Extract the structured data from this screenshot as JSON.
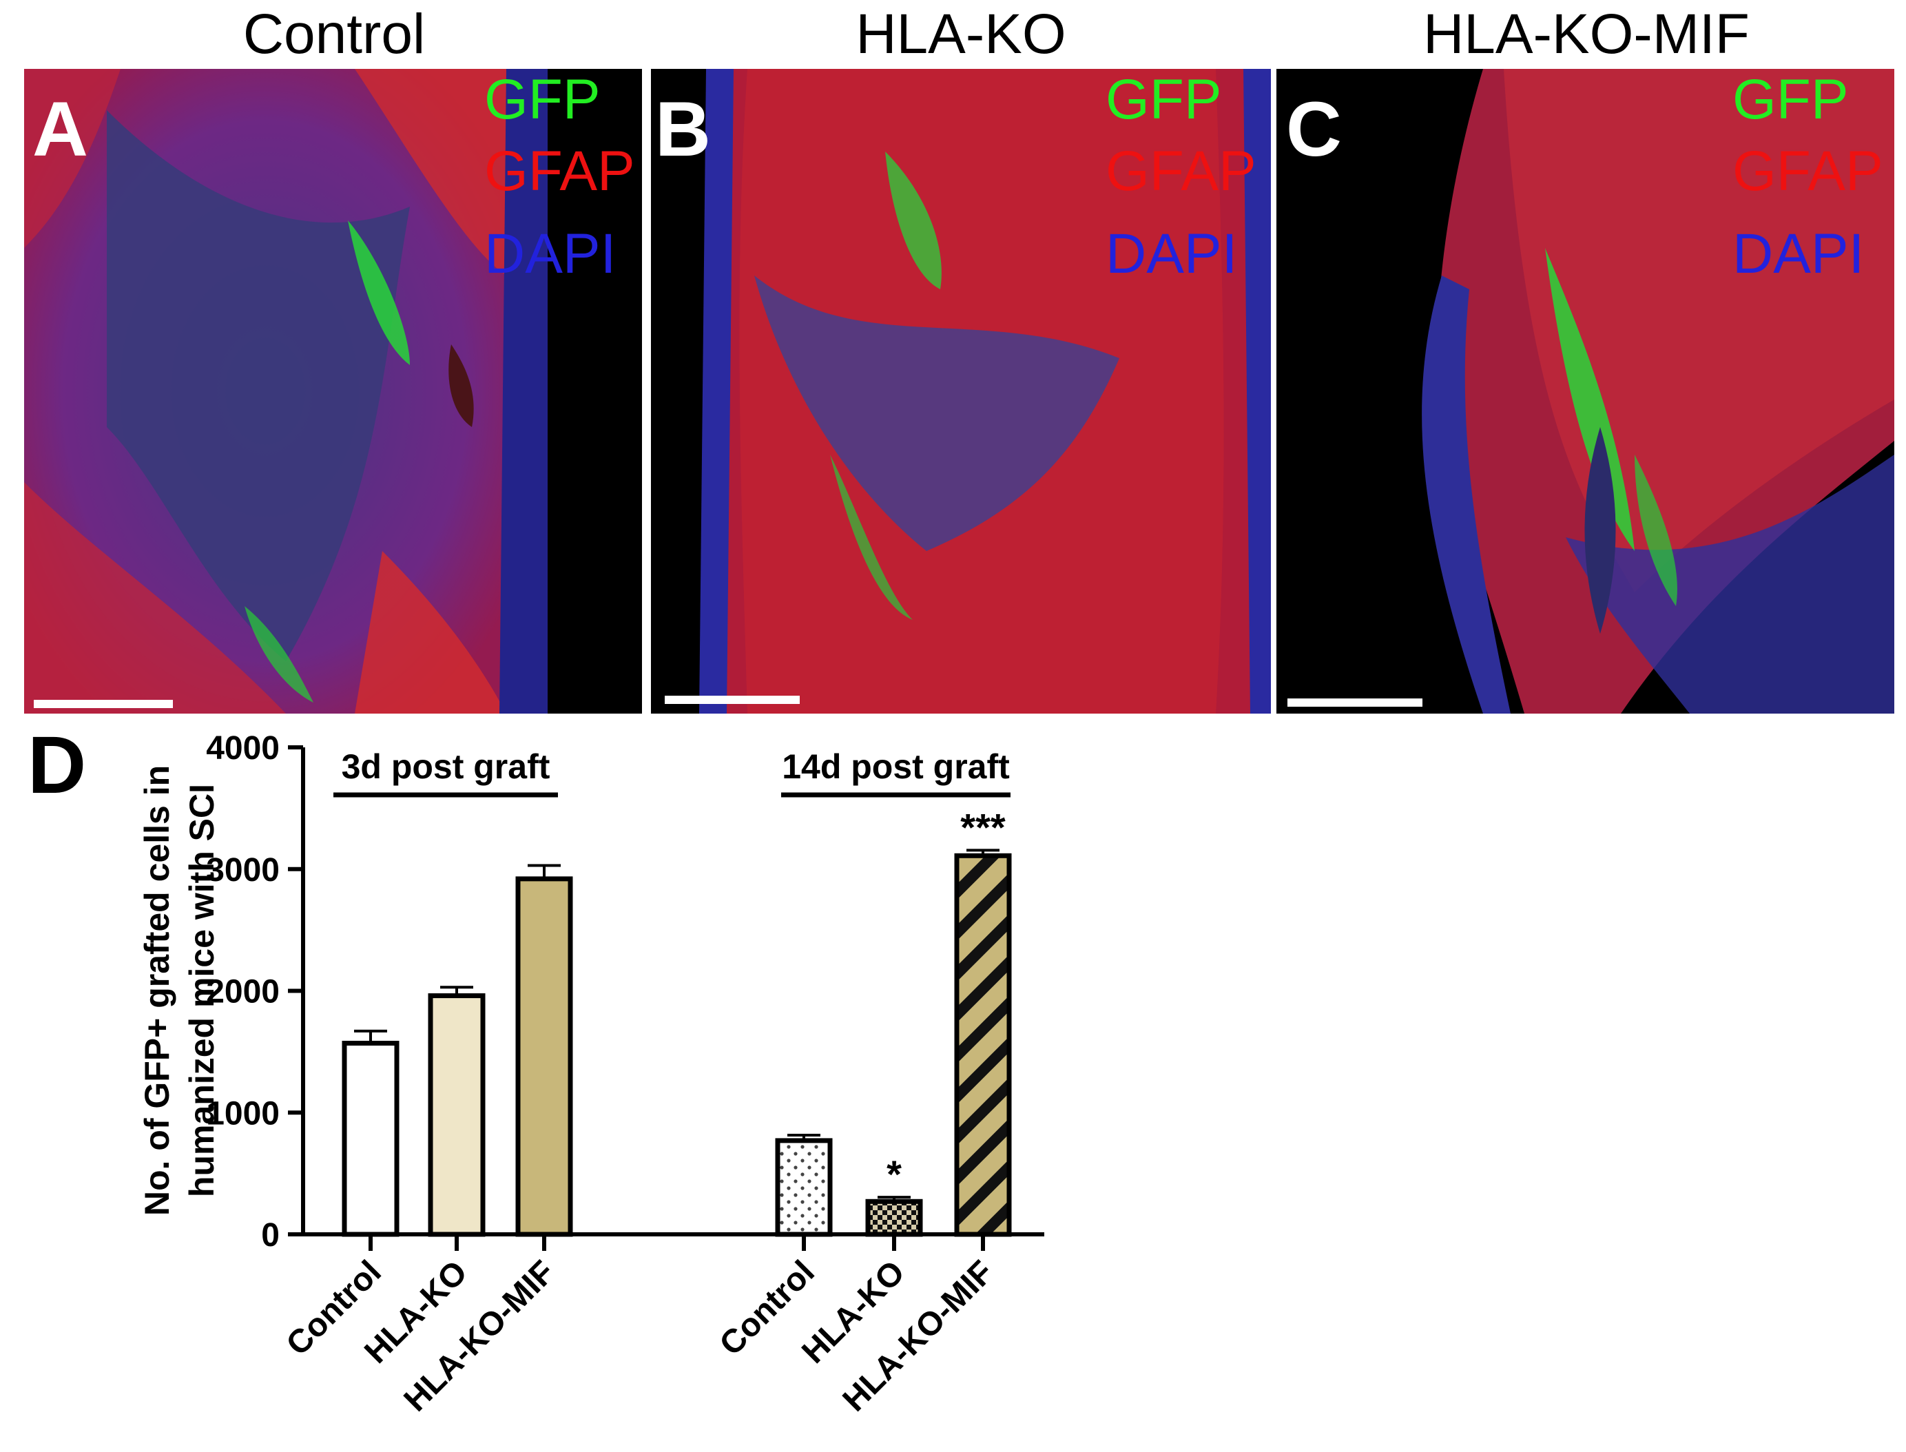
{
  "panels": [
    {
      "letter": "A",
      "title": "Control"
    },
    {
      "letter": "B",
      "title": "HLA-KO"
    },
    {
      "letter": "C",
      "title": "HLA-KO-MIF"
    }
  ],
  "stains": [
    {
      "label": "GFP",
      "color": "#22ee22"
    },
    {
      "label": "GFAP",
      "color": "#ee1111"
    },
    {
      "label": "DAPI",
      "color": "#2222dd"
    }
  ],
  "chart_letter": "D",
  "chart_data": {
    "type": "bar",
    "ylabel_lines": [
      "No. of GFP+ grafted cells in",
      "humanized mice with SCI"
    ],
    "ylim": [
      0,
      4000
    ],
    "yticks": [
      0,
      1000,
      2000,
      3000,
      4000
    ],
    "groups": [
      {
        "label": "3d post graft",
        "bars": [
          {
            "category": "Control",
            "value": 1570,
            "error": 100,
            "fill": "#ffffff",
            "pattern": "none",
            "sig": ""
          },
          {
            "category": "HLA-KO",
            "value": 1960,
            "error": 70,
            "fill": "#efe6c8",
            "pattern": "none",
            "sig": ""
          },
          {
            "category": "HLA-KO-MIF",
            "value": 2920,
            "error": 110,
            "fill": "#c8b77a",
            "pattern": "none",
            "sig": ""
          }
        ]
      },
      {
        "label": "14d post graft",
        "bars": [
          {
            "category": "Control",
            "value": 770,
            "error": 45,
            "fill": "#ffffff",
            "pattern": "dots",
            "sig": ""
          },
          {
            "category": "HLA-KO",
            "value": 270,
            "error": 35,
            "fill": "#ffffff",
            "pattern": "checker",
            "sig": "*"
          },
          {
            "category": "HLA-KO-MIF",
            "value": 3110,
            "error": 45,
            "fill": "#c8b77a",
            "pattern": "stripes",
            "sig": "***"
          }
        ]
      }
    ]
  }
}
